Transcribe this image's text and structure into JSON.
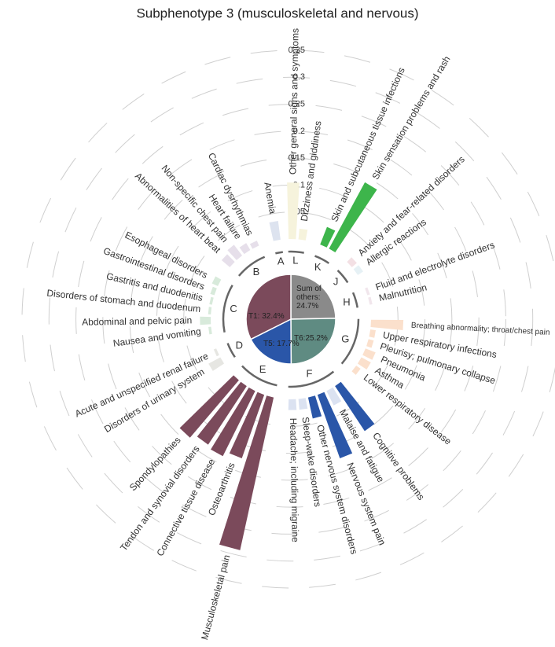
{
  "chart_data": {
    "type": "radial_bar",
    "title": "Subphenotype 3 (musculoskeletal and nervous)",
    "rlim": [
      0,
      0.35
    ],
    "rticks": [
      0.05,
      0.1,
      0.15,
      0.2,
      0.25,
      0.3,
      0.35
    ],
    "series": [
      {
        "name": "A",
        "colors": [
          "#dde3ef"
        ],
        "categories": [
          "Anemia"
        ],
        "values": [
          0.035
        ]
      },
      {
        "name": "B",
        "colors": [
          "#e6dfea",
          "#e6dfea",
          "#e6dfea",
          "#e6dfea"
        ],
        "categories": [
          "Cardiac dysrhythmias",
          "Heart failure",
          "Non-specific chest pain",
          "Abnormalities of heart beat"
        ],
        "values": [
          0.01,
          0.015,
          0.025,
          0.02
        ]
      },
      {
        "name": "C",
        "colors": [
          "#d8eadb",
          "#d8eadb",
          "#d8eadb",
          "#d8eadb",
          "#d8eadb",
          "#d8eadb"
        ],
        "categories": [
          "Esophageal disorders",
          "Gastrointestinal disorders",
          "Gastritis and duodenitis",
          "Disorders of stomach and duodenum",
          "Abdominal and pelvic pain",
          "Nausea and vomiting"
        ],
        "values": [
          0.012,
          0.008,
          0.005,
          0.005,
          0.02,
          0.005
        ]
      },
      {
        "name": "D",
        "colors": [
          "#e6e6e2",
          "#e6e6e2"
        ],
        "categories": [
          "Acute and unspecified renal failure",
          "Disorders of urinary system"
        ],
        "values": [
          0.005,
          0.025
        ]
      },
      {
        "name": "E",
        "colors": [
          "#7b4a5b",
          "#7b4a5b",
          "#7b4a5b",
          "#7b4a5b",
          "#7b4a5b"
        ],
        "categories": [
          "Spondylopathies",
          "Tendon and synovial disorders",
          "Connective tissue disease",
          "Osteoarthritis",
          "Musculoskeletal pain"
        ],
        "values": [
          0.14,
          0.13,
          0.135,
          0.125,
          0.29
        ]
      },
      {
        "name": "F",
        "colors": [
          "#dbe2f1",
          "#dbe2f1",
          "#2a56a8",
          "#2a56a8",
          "#dbe2f1",
          "#2a56a8"
        ],
        "categories": [
          "Headache; including migraine",
          "Sleep-wake disorders",
          "Other nervous system disorders",
          "Nervous system pain",
          "Malaise and fatigue",
          "Cognitive problems"
        ],
        "values": [
          0.02,
          0.02,
          0.04,
          0.125,
          0.03,
          0.1
        ]
      },
      {
        "name": "G",
        "colors": [
          "#fbe0cc",
          "#fbe0cc",
          "#fbe0cc",
          "#fbe0cc",
          "#fbe0cc",
          "#fbe0cc"
        ],
        "categories": [
          "Lower respiratory disease",
          "Asthma",
          "Pneumonia",
          "Pleurisy; pulmonary collapse",
          "Upper respiratory infections",
          "Breathing abnormality; throat/chest pain"
        ],
        "values": [
          0.01,
          0.02,
          0.02,
          0.01,
          0.01,
          0.06
        ]
      },
      {
        "name": "H",
        "colors": [
          "#f1e6ec",
          "#f1e6ec"
        ],
        "categories": [
          "Malnutrition",
          "Fluid and electrolyte disorders"
        ],
        "values": [
          0.005,
          0.005
        ]
      },
      {
        "name": "J",
        "colors": [
          "#e6f1f5",
          "#f3e0e4"
        ],
        "categories": [
          "Allergic reactions",
          "Anxiety and fear-related disorders"
        ],
        "values": [
          0.012,
          0.012
        ]
      },
      {
        "name": "K",
        "colors": [
          "#3db54b",
          "#3db54b"
        ],
        "categories": [
          "Skin sensation problems and rash",
          "Skin and subcutaneous tissue infections"
        ],
        "values": [
          0.14,
          0.035
        ]
      },
      {
        "name": "L",
        "colors": [
          "#f6f3dc",
          "#f6f3dc"
        ],
        "categories": [
          "Dizziness and giddiness",
          "Other general signs and symptoms"
        ],
        "values": [
          0.02,
          0.105
        ]
      }
    ],
    "inner_pie": {
      "values": [
        24.7,
        25.2,
        17.7,
        32.4
      ],
      "value_labels": [
        "Sum of others: 24.7%",
        "T6:25.2%",
        "T5: 17.7%",
        "T1: 32.4%"
      ],
      "colors": [
        "#8a8a8a",
        "#5f8b82",
        "#2a56a8",
        "#7b4a5b"
      ]
    }
  }
}
